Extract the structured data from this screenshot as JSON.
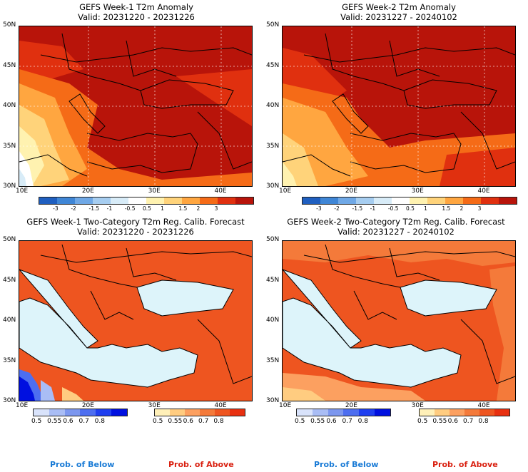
{
  "panels": [
    {
      "title": "GEFS Week-1 T2m Anomaly",
      "valid": "Valid: 20231220 - 20231226"
    },
    {
      "title": "GEFS Week-2 T2m Anomaly",
      "valid": "Valid: 20231227 - 20240102"
    },
    {
      "title": "GEFS Week-1 Two-Category T2m Reg. Calib. Forecast",
      "valid": "Valid: 20231220 - 20231226"
    },
    {
      "title": "GEFS Week-2 Two-Category T2m Reg. Calib. Forecast",
      "valid": "Valid: 20231227 - 20240102"
    }
  ],
  "lat_labels": [
    "50N",
    "45N",
    "40N",
    "35N",
    "30N"
  ],
  "lon_labels": [
    "10E",
    "20E",
    "30E",
    "40E"
  ],
  "anomaly_colorbar": {
    "ticks": [
      "-3",
      "-2",
      "-1.5",
      "-1",
      "-0.5",
      "0.5",
      "1",
      "1.5",
      "2",
      "3"
    ],
    "colors": [
      "#1f5fc0",
      "#3f86d6",
      "#6fa8e6",
      "#a6cdf0",
      "#d8ecf8",
      "#ffffff",
      "#fff2b0",
      "#ffd37a",
      "#ffa640",
      "#f56b17",
      "#e0300f",
      "#b8140a"
    ]
  },
  "prob_colorbar": {
    "ticks": [
      "0.5",
      "0.55",
      "0.6",
      "0.7",
      "0.8"
    ],
    "below_colors": [
      "#d9e3fb",
      "#a9bdf5",
      "#7c97ef",
      "#4d6ef0",
      "#1f3ff0",
      "#0010e0"
    ],
    "above_colors": [
      "#fff0b8",
      "#ffcc80",
      "#fca060",
      "#f47a3a",
      "#ee5520",
      "#e83010"
    ]
  },
  "legend": {
    "below": "Prob. of Below",
    "above": "Prob. of Above"
  },
  "colors": {
    "below_text": "#1a7bd6",
    "above_text": "#d92010",
    "sea": "#ddf4fa"
  }
}
